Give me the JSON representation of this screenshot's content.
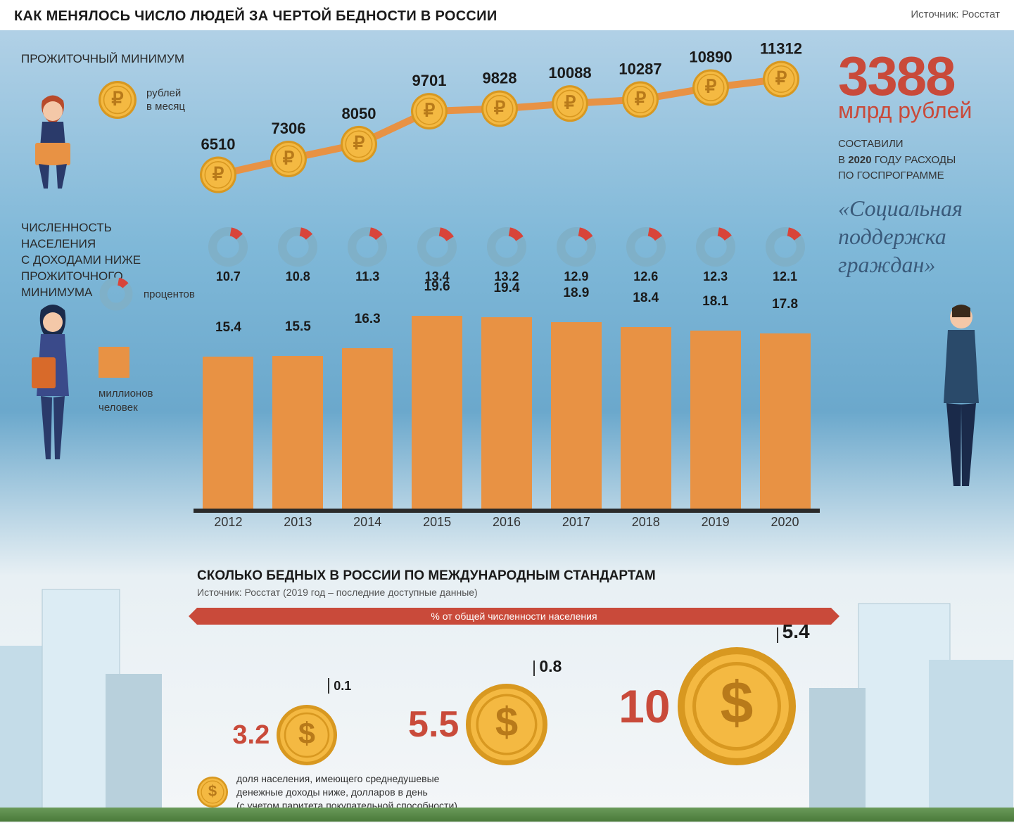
{
  "header": {
    "title": "КАК МЕНЯЛОСЬ ЧИСЛО ЛЮДЕЙ ЗА ЧЕРТОЙ БЕДНОСТИ В РОССИИ",
    "source": "Источник: Росстат"
  },
  "minimum_wage": {
    "label": "ПРОЖИТОЧНЫЙ МИНИМУМ",
    "legend": "рублей\nв месяц",
    "coin_color": "#f4b942",
    "coin_edge": "#d89820",
    "line_color": "#e89244",
    "points": [
      {
        "year": 2012,
        "value": 6510
      },
      {
        "year": 2013,
        "value": 7306
      },
      {
        "year": 2014,
        "value": 8050
      },
      {
        "year": 2015,
        "value": 9701
      },
      {
        "year": 2016,
        "value": 9828
      },
      {
        "year": 2017,
        "value": 10088
      },
      {
        "year": 2018,
        "value": 10287
      },
      {
        "year": 2019,
        "value": 10890
      },
      {
        "year": 2020,
        "value": 11312
      }
    ],
    "value_fontsize": 22,
    "text_color": "#1a1a1a"
  },
  "population": {
    "label": "ЧИСЛЕННОСТЬ НАСЕЛЕНИЯ\nС ДОХОДАМИ НИЖЕ\nПРОЖИТОЧНОГО МИНИМУМА",
    "donut_legend": "процентов",
    "bar_legend": "миллионов\nчеловек",
    "donut_base_color": "#7fb0c8",
    "donut_slice_color": "#d8443a",
    "bar_color": "#e89244",
    "bar_base_color": "#2a2a2a",
    "max_millions": 20,
    "data": [
      {
        "year": 2012,
        "percent": 10.7,
        "millions": 15.4
      },
      {
        "year": 2013,
        "percent": 10.8,
        "millions": 15.5
      },
      {
        "year": 2014,
        "percent": 11.3,
        "millions": 16.3
      },
      {
        "year": 2015,
        "percent": 13.4,
        "millions": 19.6
      },
      {
        "year": 2016,
        "percent": 13.2,
        "millions": 19.4
      },
      {
        "year": 2017,
        "percent": 12.9,
        "millions": 18.9
      },
      {
        "year": 2018,
        "percent": 12.6,
        "millions": 18.4
      },
      {
        "year": 2019,
        "percent": 12.3,
        "millions": 18.1
      },
      {
        "year": 2020,
        "percent": 12.1,
        "millions": 17.8
      }
    ]
  },
  "sidebar": {
    "number": "3388",
    "unit": "млрд рублей",
    "sub_pre": "СОСТАВИЛИ\nВ ",
    "sub_bold": "2020",
    "sub_post": " ГОДУ РАСХОДЫ\nПО ГОСПРОГРАММЕ",
    "quote": "«Социальная поддержка граждан»",
    "number_color": "#c94a3a",
    "quote_color": "#3a5a7a"
  },
  "international": {
    "title": "СКОЛЬКО БЕДНЫХ В РОССИИ ПО МЕЖДУНАРОДНЫМ СТАНДАРТАМ",
    "source": "Источник: Росстат (2019 год – последние доступные данные)",
    "bar_label": "% от общей численности населения",
    "bar_color": "#c94a3a",
    "coin_color": "#f4b942",
    "coin_edge": "#d89820",
    "threshold_color": "#c94a3a",
    "thresholds": [
      {
        "dollars": "3.2",
        "percent": "0.1",
        "coin_size": 86
      },
      {
        "dollars": "5.5",
        "percent": "0.8",
        "coin_size": 116
      },
      {
        "dollars": "10",
        "percent": "5.4",
        "coin_size": 168
      }
    ],
    "legend": "доля населения, имеющего среднедушевые\nденежные доходы ниже, долларов в день\n(с учетом паритета покупательной способности)"
  },
  "colors": {
    "sky_top": "#b8d4e8",
    "sky_mid": "#7fb8d8",
    "ground": "#f4f6f8",
    "building_light": "#d4e4ec",
    "building_dark": "#a8c4d4"
  }
}
